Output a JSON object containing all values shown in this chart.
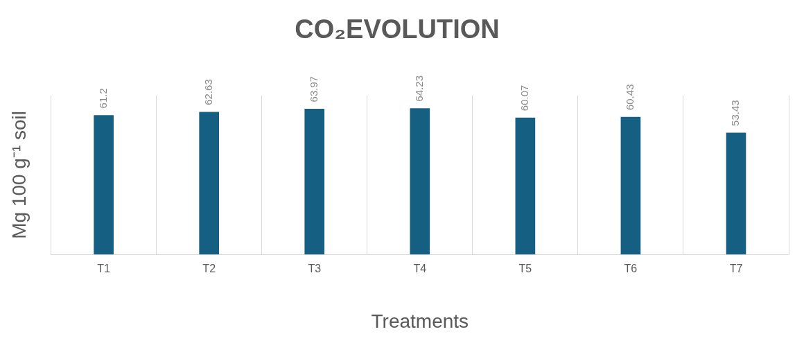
{
  "chart_data": {
    "type": "bar",
    "title": "CO₂EVOLUTION",
    "xlabel": "Treatments",
    "ylabel": "Mg 100 g⁻¹ soil",
    "categories": [
      "T1",
      "T2",
      "T3",
      "T4",
      "T5",
      "T6",
      "T7"
    ],
    "values": [
      61.2,
      62.63,
      63.97,
      64.23,
      60.07,
      60.43,
      53.43
    ],
    "color": "#155f82",
    "data_labels": true,
    "grid": "x"
  }
}
